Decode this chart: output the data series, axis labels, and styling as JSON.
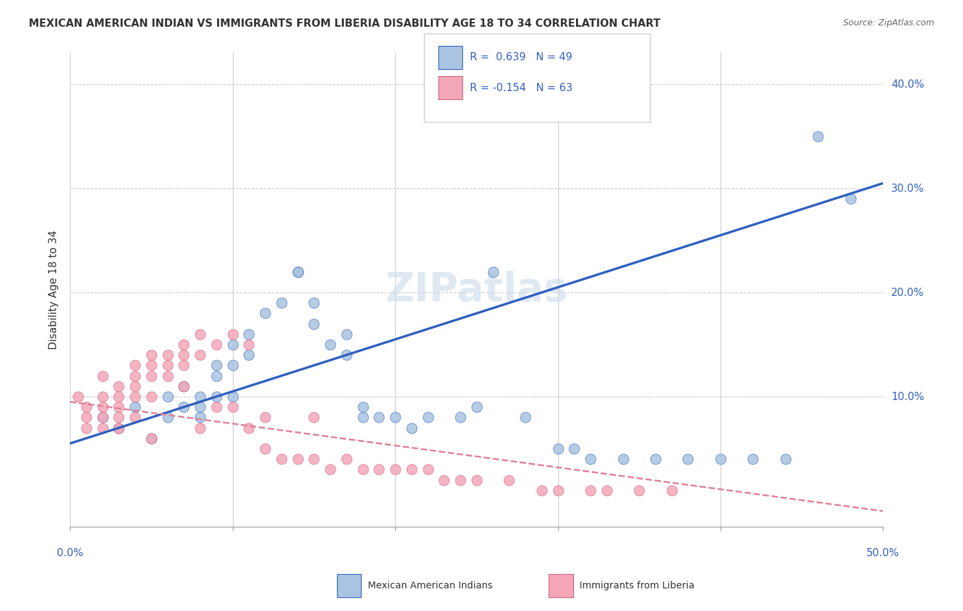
{
  "title": "MEXICAN AMERICAN INDIAN VS IMMIGRANTS FROM LIBERIA DISABILITY AGE 18 TO 34 CORRELATION CHART",
  "source": "Source: ZipAtlas.com",
  "ylabel": "Disability Age 18 to 34",
  "right_ytick_labels": [
    "10.0%",
    "20.0%",
    "30.0%",
    "40.0%"
  ],
  "right_ytick_vals": [
    0.1,
    0.2,
    0.3,
    0.4
  ],
  "xlim": [
    0,
    0.5
  ],
  "ylim": [
    -0.025,
    0.43
  ],
  "blue_color": "#a8c4e0",
  "pink_color": "#f4a7b9",
  "blue_line_color": "#3060c0",
  "pink_line_color": "#e08098",
  "pink_edge_color": "#d06080",
  "legend_R_blue": "R =  0.639",
  "legend_N_blue": "N = 49",
  "legend_R_pink": "R = -0.154",
  "legend_N_pink": "N = 63",
  "blue_scatter_x": [
    0.02,
    0.03,
    0.04,
    0.05,
    0.06,
    0.06,
    0.07,
    0.07,
    0.08,
    0.08,
    0.08,
    0.09,
    0.09,
    0.09,
    0.1,
    0.1,
    0.1,
    0.11,
    0.11,
    0.12,
    0.13,
    0.14,
    0.14,
    0.15,
    0.15,
    0.16,
    0.17,
    0.17,
    0.18,
    0.18,
    0.19,
    0.2,
    0.21,
    0.22,
    0.24,
    0.25,
    0.26,
    0.28,
    0.3,
    0.31,
    0.32,
    0.34,
    0.36,
    0.38,
    0.4,
    0.42,
    0.44,
    0.46,
    0.48
  ],
  "blue_scatter_y": [
    0.08,
    0.07,
    0.09,
    0.06,
    0.1,
    0.08,
    0.11,
    0.09,
    0.1,
    0.09,
    0.08,
    0.13,
    0.12,
    0.1,
    0.15,
    0.13,
    0.1,
    0.16,
    0.14,
    0.18,
    0.19,
    0.22,
    0.22,
    0.19,
    0.17,
    0.15,
    0.16,
    0.14,
    0.08,
    0.09,
    0.08,
    0.08,
    0.07,
    0.08,
    0.08,
    0.09,
    0.22,
    0.08,
    0.05,
    0.05,
    0.04,
    0.04,
    0.04,
    0.04,
    0.04,
    0.04,
    0.04,
    0.35,
    0.29
  ],
  "pink_scatter_x": [
    0.005,
    0.01,
    0.01,
    0.01,
    0.02,
    0.02,
    0.02,
    0.02,
    0.02,
    0.03,
    0.03,
    0.03,
    0.03,
    0.03,
    0.04,
    0.04,
    0.04,
    0.04,
    0.04,
    0.05,
    0.05,
    0.05,
    0.05,
    0.05,
    0.06,
    0.06,
    0.06,
    0.07,
    0.07,
    0.07,
    0.07,
    0.08,
    0.08,
    0.08,
    0.09,
    0.09,
    0.1,
    0.1,
    0.11,
    0.11,
    0.12,
    0.12,
    0.13,
    0.14,
    0.15,
    0.15,
    0.16,
    0.17,
    0.18,
    0.19,
    0.2,
    0.21,
    0.22,
    0.23,
    0.24,
    0.25,
    0.27,
    0.29,
    0.3,
    0.32,
    0.33,
    0.35,
    0.37
  ],
  "pink_scatter_y": [
    0.1,
    0.08,
    0.09,
    0.07,
    0.12,
    0.1,
    0.09,
    0.08,
    0.07,
    0.11,
    0.1,
    0.09,
    0.08,
    0.07,
    0.13,
    0.12,
    0.11,
    0.1,
    0.08,
    0.14,
    0.13,
    0.12,
    0.1,
    0.06,
    0.14,
    0.13,
    0.12,
    0.15,
    0.14,
    0.13,
    0.11,
    0.16,
    0.14,
    0.07,
    0.15,
    0.09,
    0.16,
    0.09,
    0.15,
    0.07,
    0.08,
    0.05,
    0.04,
    0.04,
    0.04,
    0.08,
    0.03,
    0.04,
    0.03,
    0.03,
    0.03,
    0.03,
    0.03,
    0.02,
    0.02,
    0.02,
    0.02,
    0.01,
    0.01,
    0.01,
    0.01,
    0.01,
    0.01
  ],
  "blue_trend_x": [
    0.0,
    0.5
  ],
  "blue_trend_y": [
    0.055,
    0.305
  ],
  "pink_trend_x": [
    0.0,
    0.5
  ],
  "pink_trend_y": [
    0.095,
    -0.01
  ]
}
